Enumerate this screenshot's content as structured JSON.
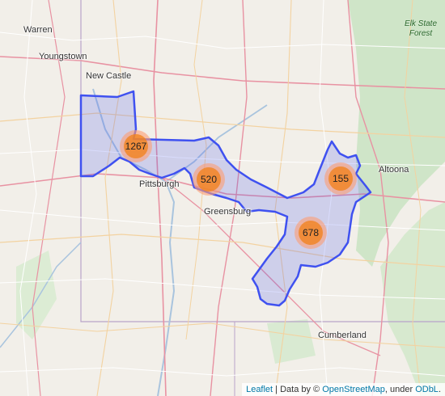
{
  "map": {
    "cities": [
      {
        "id": "warren",
        "name": "Warren"
      },
      {
        "id": "youngstown",
        "name": "Youngstown"
      },
      {
        "id": "new-castle",
        "name": "New Castle"
      },
      {
        "id": "pittsburgh",
        "name": "Pittsburgh"
      },
      {
        "id": "greensburg",
        "name": "Greensburg"
      },
      {
        "id": "altoona",
        "name": "Altoona"
      },
      {
        "id": "cumberland",
        "name": "Cumberland"
      }
    ],
    "forest_label": {
      "line1": "Elk State",
      "line2": "Forest"
    },
    "clusters": [
      {
        "id": "1267",
        "count": "1267"
      },
      {
        "id": "520",
        "count": "520"
      },
      {
        "id": "155",
        "count": "155"
      },
      {
        "id": "678",
        "count": "678"
      }
    ],
    "colors": {
      "region_stroke": "#3f51f0",
      "region_fill": "#3f51f0",
      "cluster_outer": "#fd9c73",
      "cluster_inner": "#f18017"
    }
  },
  "attribution": {
    "leaflet": "Leaflet",
    "sep1": " | Data by © ",
    "osm": "OpenStreetMap",
    "sep2": ", under ",
    "odbl": "ODbL",
    "end": "."
  }
}
